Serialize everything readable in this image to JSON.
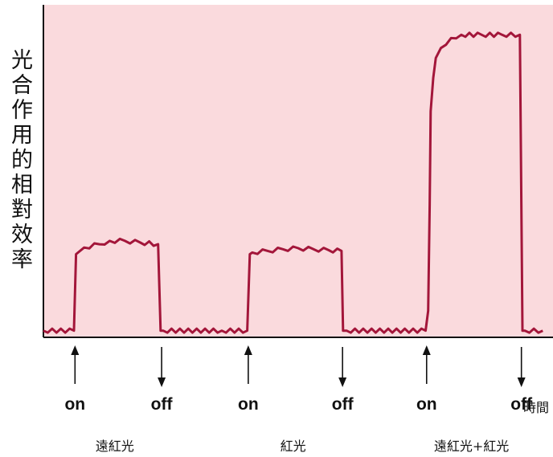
{
  "chart_data": {
    "type": "line",
    "ylabel": "光合作用的相對效率",
    "xlabel": "時間",
    "colors": {
      "background": "#fadadd",
      "line": "#a3163a",
      "axis": "#111111"
    },
    "grid": false,
    "ylim": [
      0,
      100
    ],
    "xlim": [
      0,
      100
    ],
    "series": [
      {
        "x": [
          0,
          6,
          6.4,
          8,
          11,
          13,
          16,
          19,
          22.5,
          23,
          23.5,
          35,
          40,
          40.5,
          41,
          44,
          47,
          50,
          53,
          56,
          58.5,
          58.8,
          59.5,
          75,
          75.5,
          75.8,
          76,
          76.5,
          77,
          78,
          79,
          80,
          82,
          86,
          90,
          93.5,
          94,
          94.5,
          98
        ],
        "y": [
          2,
          2,
          25,
          27,
          28,
          29,
          29,
          28.5,
          28,
          2,
          2,
          2,
          2,
          25,
          25.5,
          26,
          26.5,
          26.8,
          26.5,
          26.2,
          26,
          2,
          2,
          2,
          8,
          40,
          68,
          78,
          84,
          87,
          88,
          90,
          91,
          91,
          91,
          91,
          2,
          2,
          2
        ]
      }
    ],
    "events": [
      {
        "label": "on",
        "x": 6.2,
        "direction": "up"
      },
      {
        "label": "off",
        "x": 23.2,
        "direction": "down"
      },
      {
        "label": "on",
        "x": 40.2,
        "direction": "up"
      },
      {
        "label": "off",
        "x": 58.7,
        "direction": "down"
      },
      {
        "label": "on",
        "x": 75.2,
        "direction": "up"
      },
      {
        "label": "off",
        "x": 93.8,
        "direction": "down"
      }
    ],
    "conditions": [
      {
        "label": "遠紅光",
        "x": 14
      },
      {
        "label": "紅光",
        "x": 49
      },
      {
        "label": "遠紅光+紅光",
        "x": 84
      }
    ]
  }
}
